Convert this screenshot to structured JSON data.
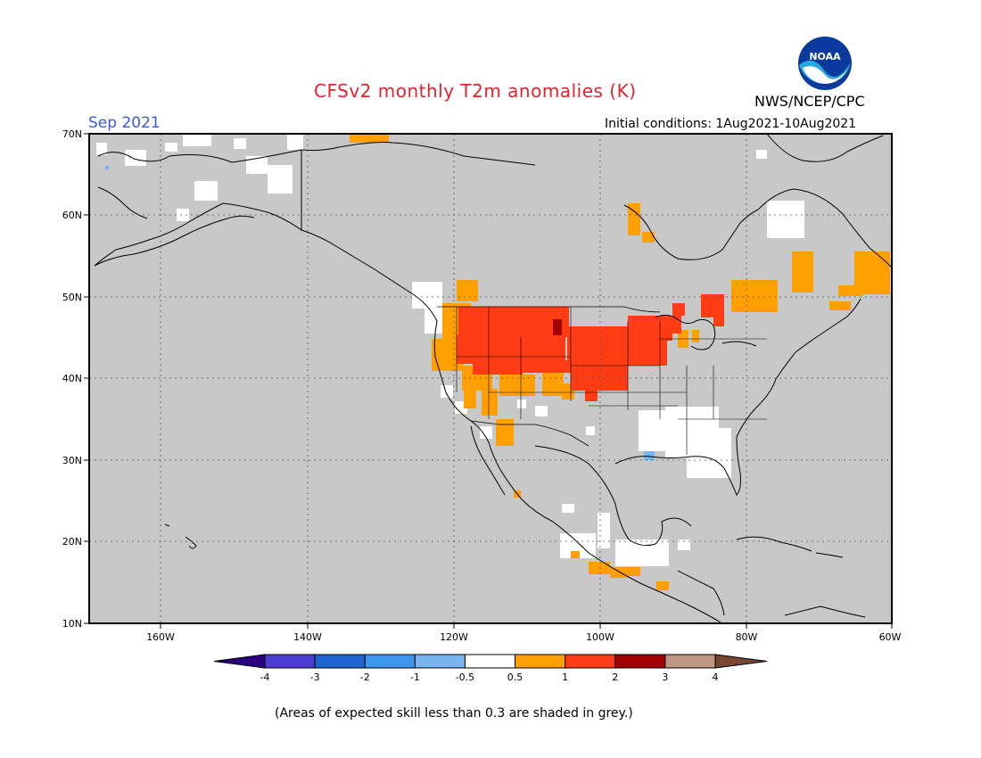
{
  "header": {
    "title": "CFSv2 monthly T2m anomalies (K)",
    "org": "NWS/NCEP/CPC",
    "month": "Sep 2021",
    "initial_conditions": "Initial conditions: 1Aug2021-10Aug2021",
    "logo_text": "NOAA"
  },
  "map": {
    "lat_labels": [
      "70N",
      "60N",
      "50N",
      "40N",
      "30N",
      "20N",
      "10N"
    ],
    "lon_labels": [
      "160W",
      "140W",
      "120W",
      "100W",
      "80W",
      "60W"
    ],
    "colors": {
      "skill_grey": "#c8c8c8",
      "neutral": "#ffffff",
      "warm_0_5_1": "#ffa000",
      "warm_1_2": "#ff3c14",
      "warm_2_3": "#a00000",
      "cool_-1_-0_5": "#78b4f0",
      "coast": "#000000"
    }
  },
  "colorbar": {
    "labels": [
      "-4",
      "-3",
      "-2",
      "-1",
      "-0.5",
      "0.5",
      "1",
      "2",
      "3",
      "4"
    ],
    "colors": [
      "#2a007f",
      "#4b3cd2",
      "#1e64d2",
      "#3c96f0",
      "#78b4f0",
      "#ffffff",
      "#ffa000",
      "#ff3c14",
      "#a00000",
      "#be9682",
      "#784632"
    ]
  },
  "footnote": "(Areas of expected skill less than 0.3 are shaded in grey.)"
}
